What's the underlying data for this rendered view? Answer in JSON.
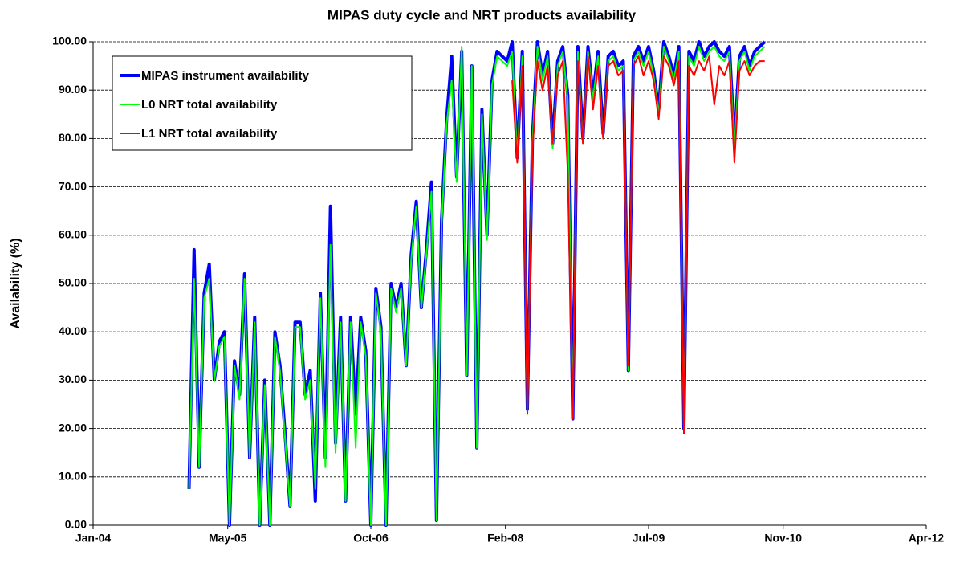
{
  "chart_data": {
    "type": "line",
    "title": "MIPAS duty cycle and NRT products availability",
    "y_label": "Availability  (%)",
    "x": [
      2004.95,
      2005.0,
      2005.05,
      2005.1,
      2005.15,
      2005.2,
      2005.25,
      2005.3,
      2005.35,
      2005.4,
      2005.45,
      2005.5,
      2005.55,
      2005.6,
      2005.65,
      2005.7,
      2005.75,
      2005.8,
      2005.85,
      2005.9,
      2005.95,
      2006.0,
      2006.05,
      2006.1,
      2006.15,
      2006.2,
      2006.25,
      2006.3,
      2006.35,
      2006.4,
      2006.45,
      2006.5,
      2006.55,
      2006.6,
      2006.65,
      2006.7,
      2006.75,
      2006.8,
      2006.85,
      2006.9,
      2006.95,
      2007.0,
      2007.05,
      2007.1,
      2007.15,
      2007.2,
      2007.25,
      2007.3,
      2007.35,
      2007.4,
      2007.45,
      2007.5,
      2007.55,
      2007.6,
      2007.65,
      2007.7,
      2007.75,
      2007.8,
      2007.85,
      2007.9,
      2007.95,
      2008.0,
      2008.05,
      2008.1,
      2008.15,
      2008.2,
      2008.25,
      2008.3,
      2008.35,
      2008.4,
      2008.45,
      2008.5,
      2008.55,
      2008.6,
      2008.65,
      2008.7,
      2008.75,
      2008.8,
      2008.85,
      2008.9,
      2008.95,
      2009.0,
      2009.05,
      2009.1,
      2009.15,
      2009.2,
      2009.25,
      2009.3,
      2009.35,
      2009.4,
      2009.45,
      2009.5,
      2009.55,
      2009.6,
      2009.65,
      2009.7,
      2009.75,
      2009.8,
      2009.85,
      2009.9,
      2009.95,
      2010.0,
      2010.05,
      2010.1,
      2010.15,
      2010.2,
      2010.25,
      2010.3,
      2010.35,
      2010.4,
      2010.45,
      2010.5,
      2010.55,
      2010.6,
      2010.65
    ],
    "series": [
      {
        "name": "MIPAS instrument availability",
        "color": "#0000ff",
        "width": 4,
        "values": [
          7.5,
          57,
          12,
          48,
          54,
          30,
          38,
          40,
          0,
          34,
          27,
          52,
          14,
          43,
          0,
          30,
          0,
          40,
          33,
          19,
          4,
          42,
          42,
          27,
          32,
          5,
          48,
          14,
          66,
          17,
          43,
          5,
          43,
          23,
          43,
          36,
          0,
          49,
          41,
          0,
          50,
          45,
          50,
          33,
          56,
          67,
          45,
          57,
          71,
          1,
          63,
          84,
          97,
          72,
          98,
          31,
          95,
          16,
          86,
          60,
          92,
          98,
          97,
          96,
          100,
          76,
          98,
          24,
          80,
          100,
          93,
          98,
          79,
          96,
          99,
          89,
          22,
          99,
          80,
          99,
          89,
          98,
          81,
          97,
          98,
          95,
          96,
          32,
          97,
          99,
          96,
          99,
          94,
          86,
          100,
          97,
          93,
          99,
          20,
          98,
          96,
          100,
          97,
          99,
          100,
          98,
          97,
          99,
          79,
          97,
          99,
          95,
          98,
          99,
          100
        ]
      },
      {
        "name": "L0 NRT total availability",
        "color": "#00ff00",
        "width": 2,
        "values": [
          7.5,
          51,
          12,
          47,
          51,
          30,
          37,
          39,
          0,
          33,
          26,
          51,
          14,
          42,
          0,
          29,
          0,
          39,
          32,
          18,
          4,
          41,
          41,
          26,
          30,
          7.5,
          47,
          12,
          58,
          15,
          42,
          5,
          42,
          16,
          42,
          35,
          0,
          48,
          40,
          0,
          49,
          44,
          49,
          33,
          55,
          66,
          45,
          56,
          69,
          1,
          62,
          83,
          92,
          71,
          99,
          31,
          95,
          16,
          85,
          59,
          91,
          97,
          96,
          95,
          98,
          76,
          97,
          23,
          79,
          99,
          92,
          97,
          78,
          95,
          98,
          88,
          22,
          98,
          79,
          98,
          88,
          97,
          80,
          96,
          97,
          94,
          95,
          32,
          96,
          98,
          95,
          98,
          93,
          85,
          99,
          96,
          92,
          98,
          20,
          97,
          95,
          99,
          96,
          98,
          99,
          97,
          96,
          98,
          78,
          96,
          98,
          94,
          97,
          98,
          99
        ]
      },
      {
        "name": "L1 NRT total availability",
        "color": "#ff0000",
        "width": 2,
        "values": [
          null,
          null,
          null,
          null,
          null,
          null,
          null,
          null,
          null,
          null,
          null,
          null,
          null,
          null,
          null,
          null,
          null,
          null,
          null,
          null,
          null,
          null,
          null,
          null,
          null,
          null,
          null,
          null,
          null,
          null,
          null,
          null,
          null,
          null,
          null,
          null,
          null,
          null,
          null,
          null,
          null,
          null,
          null,
          null,
          null,
          null,
          null,
          null,
          null,
          null,
          null,
          null,
          null,
          null,
          null,
          null,
          null,
          null,
          null,
          null,
          null,
          null,
          null,
          null,
          92,
          75,
          95,
          23,
          77,
          96,
          90,
          95,
          79,
          93,
          96,
          73,
          22,
          96,
          79,
          97,
          86,
          95,
          80,
          95,
          96,
          93,
          94,
          33,
          95,
          97,
          93,
          96,
          92,
          84,
          97,
          95,
          91,
          96,
          19,
          95,
          93,
          96,
          94,
          97,
          87,
          95,
          93,
          96,
          75,
          94,
          96,
          93,
          95,
          96,
          96
        ]
      }
    ],
    "xlim": [
      2004,
      2012.25
    ],
    "xticks": [
      {
        "value": 2004,
        "label": "Jan-04"
      },
      {
        "value": 2005.333,
        "label": "May-05"
      },
      {
        "value": 2006.75,
        "label": "Oct-06"
      },
      {
        "value": 2008.083,
        "label": "Feb-08"
      },
      {
        "value": 2009.5,
        "label": "Jul-09"
      },
      {
        "value": 2010.833,
        "label": "Nov-10"
      },
      {
        "value": 2012.25,
        "label": "Apr-12"
      }
    ],
    "ylim": [
      0,
      100
    ],
    "yticks": [
      {
        "value": 0,
        "label": "0.00"
      },
      {
        "value": 10,
        "label": "10.00"
      },
      {
        "value": 20,
        "label": "20.00"
      },
      {
        "value": 30,
        "label": "30.00"
      },
      {
        "value": 40,
        "label": "40.00"
      },
      {
        "value": 50,
        "label": "50.00"
      },
      {
        "value": 60,
        "label": "60.00"
      },
      {
        "value": 70,
        "label": "70.00"
      },
      {
        "value": 80,
        "label": "80.00"
      },
      {
        "value": 90,
        "label": "90.00"
      },
      {
        "value": 100,
        "label": "100.00"
      }
    ],
    "grid": true,
    "legend": "top-left"
  }
}
